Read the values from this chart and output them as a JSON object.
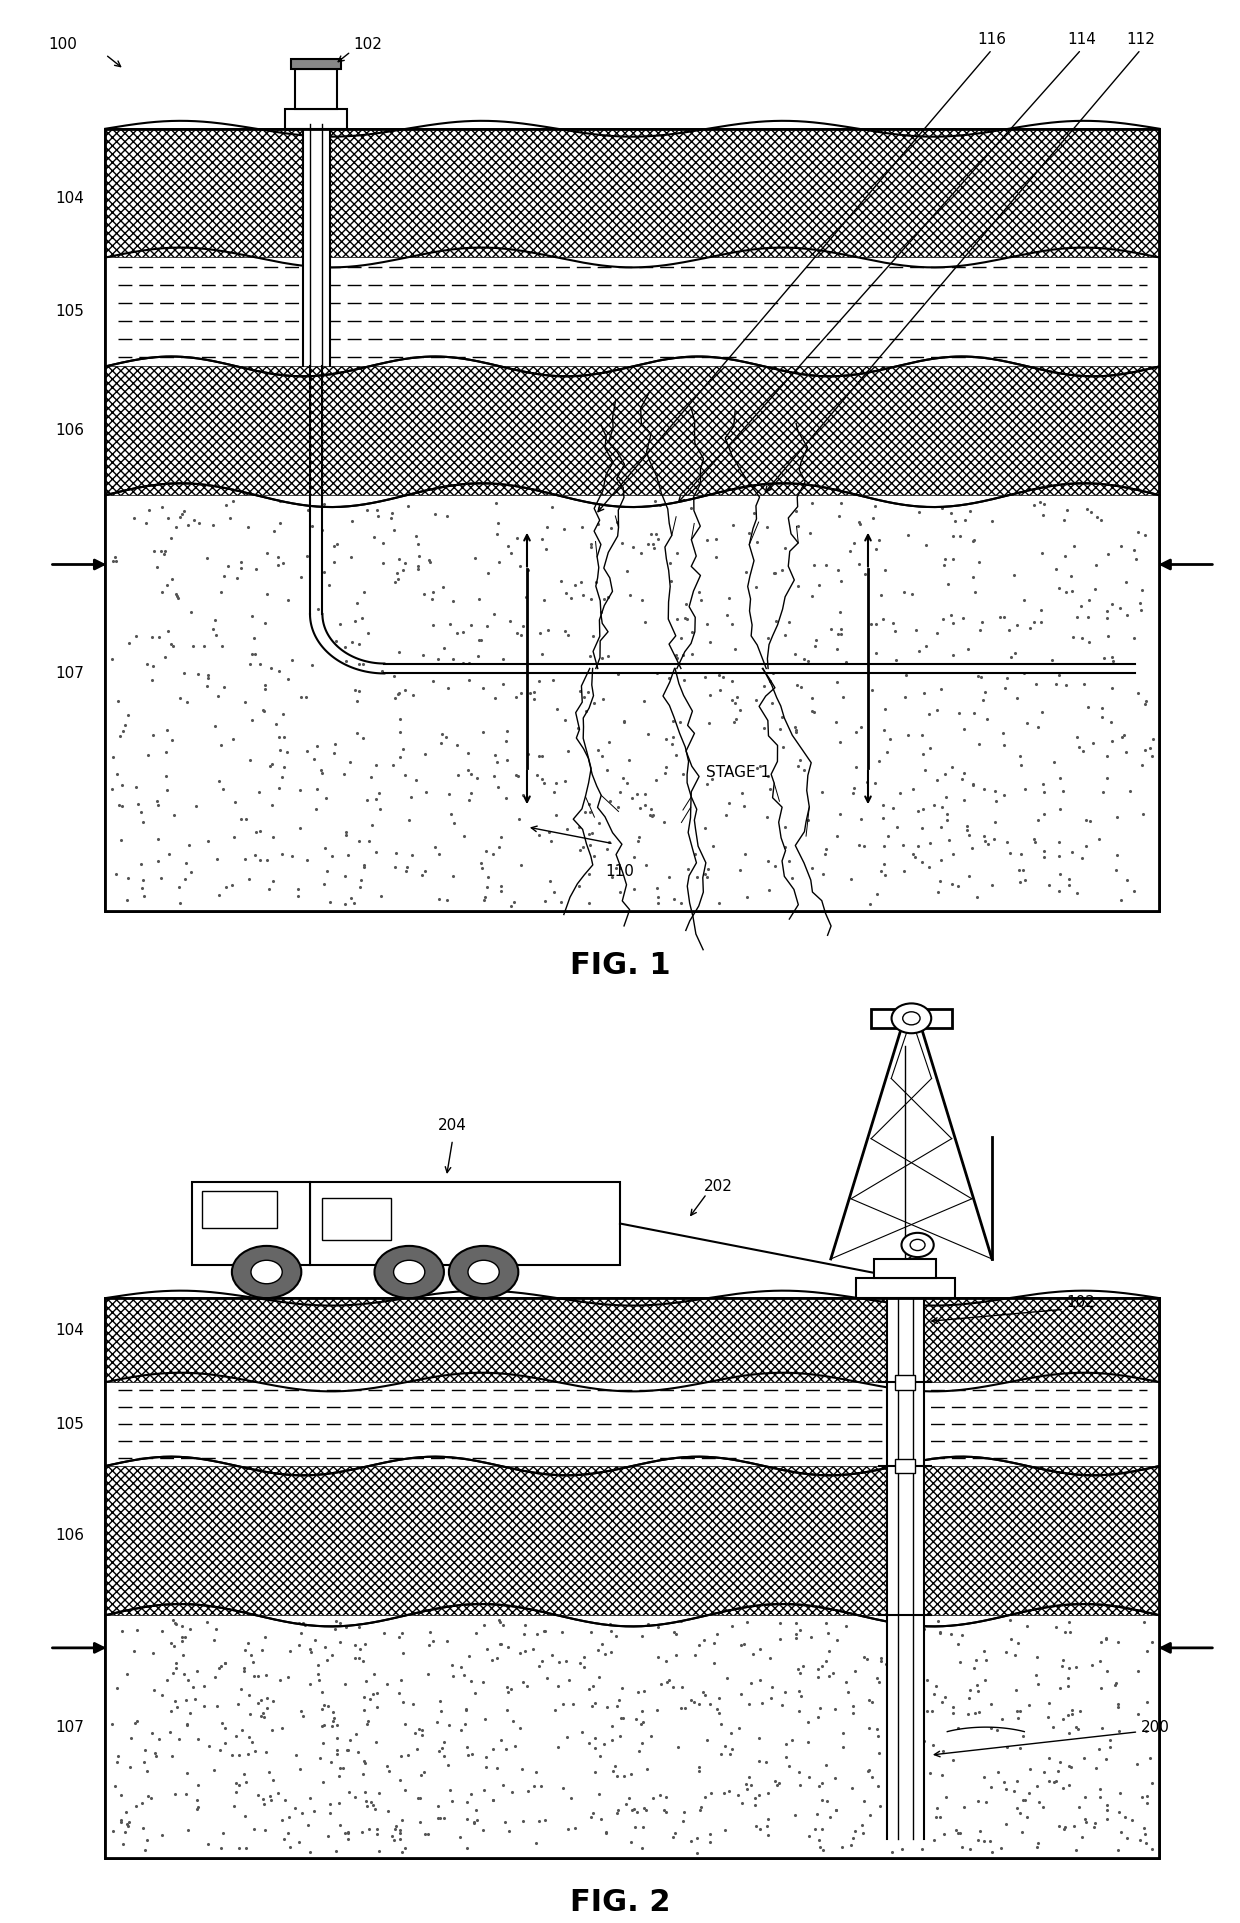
{
  "fig_width": 12.4,
  "fig_height": 19.23,
  "background_color": "#ffffff",
  "fig1": {
    "title": "FIG. 1",
    "title_fontsize": 22
  },
  "fig2": {
    "title": "FIG. 2",
    "title_fontsize": 22
  }
}
